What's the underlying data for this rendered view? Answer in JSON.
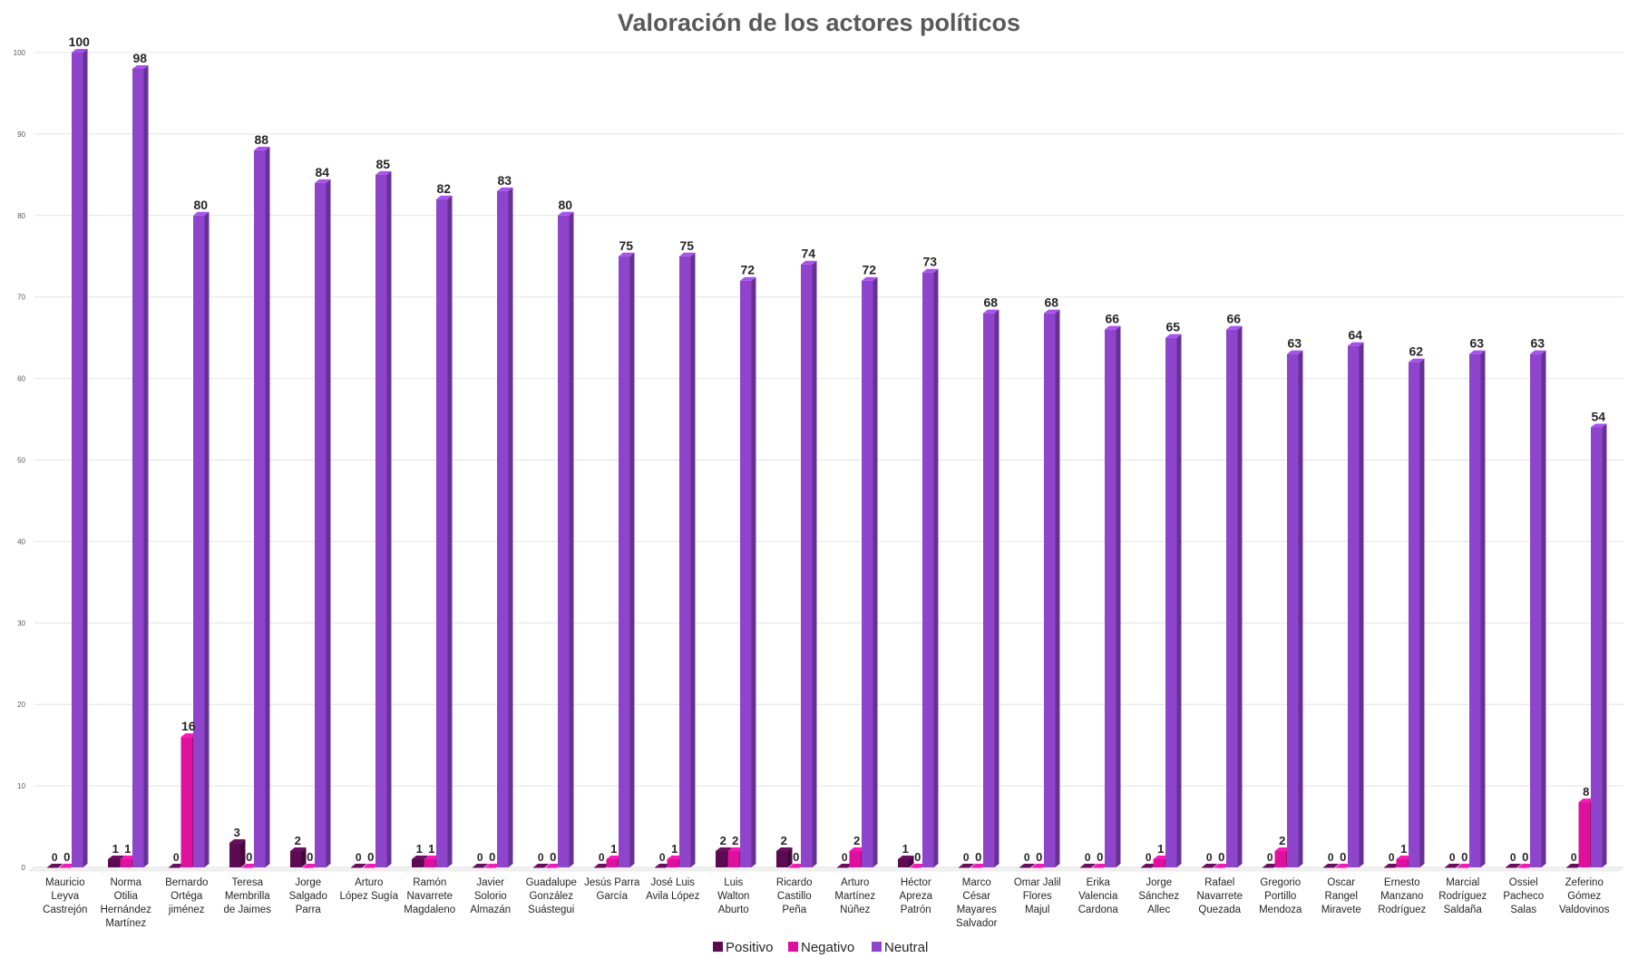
{
  "chart_data": {
    "type": "bar",
    "title": "Valoración  de los actores políticos",
    "xlabel": "",
    "ylabel": "",
    "ylim": [
      0,
      100
    ],
    "yticks": [
      0,
      10,
      20,
      30,
      40,
      50,
      60,
      70,
      80,
      90,
      100
    ],
    "grid": true,
    "legend_position": "bottom",
    "categories": [
      [
        "Mauricio",
        "Leyva",
        "Castrejón"
      ],
      [
        "Norma",
        "Otilia",
        "Hernández",
        "Martínez"
      ],
      [
        "Bernardo",
        "Ortéga",
        "jiménez"
      ],
      [
        "Teresa",
        "Membrilla",
        "de Jaimes"
      ],
      [
        "Jorge",
        "Salgado",
        "Parra"
      ],
      [
        "Arturo",
        "López Sugía"
      ],
      [
        "Ramón",
        "Navarrete",
        "Magdaleno"
      ],
      [
        "Javier",
        "Solorio",
        "Almazán"
      ],
      [
        "Guadalupe",
        "González",
        "Suástegui"
      ],
      [
        "Jesús Parra",
        "García"
      ],
      [
        "José Luis",
        "Avila López"
      ],
      [
        "Luis",
        "Walton",
        "Aburto"
      ],
      [
        "Ricardo",
        "Castillo",
        "Peña"
      ],
      [
        "Arturo",
        "Martínez",
        "Núñez"
      ],
      [
        "Héctor",
        "Apreza",
        "Patrón"
      ],
      [
        "Marco",
        "César",
        "Mayares",
        "Salvador"
      ],
      [
        "Omar Jalil",
        "Flores",
        "Majul"
      ],
      [
        "Erika",
        "Valencia",
        "Cardona"
      ],
      [
        "Jorge",
        "Sánchez",
        "Allec"
      ],
      [
        "Rafael",
        "Navarrete",
        "Quezada"
      ],
      [
        "Gregorio",
        "Portillo",
        "Mendoza"
      ],
      [
        "Oscar",
        "Rangel",
        "Miravete"
      ],
      [
        "Ernesto",
        "Manzano",
        "Rodríguez"
      ],
      [
        "Marcial",
        "Rodríguez",
        "Saldaña"
      ],
      [
        "Ossiel",
        "Pacheco",
        "Salas"
      ],
      [
        "Zeferino",
        "Gómez",
        "Valdovinos"
      ]
    ],
    "series": [
      {
        "name": "Positivo",
        "color": "#5c0a52",
        "values": [
          0,
          1,
          0,
          3,
          2,
          0,
          1,
          0,
          0,
          0,
          0,
          2,
          2,
          0,
          1,
          0,
          0,
          0,
          0,
          0,
          0,
          0,
          0,
          0,
          0,
          0
        ]
      },
      {
        "name": "Negativo",
        "color": "#e0109e",
        "values": [
          0,
          1,
          16,
          0,
          0,
          0,
          1,
          0,
          0,
          1,
          1,
          2,
          0,
          2,
          0,
          0,
          0,
          0,
          1,
          0,
          2,
          0,
          1,
          0,
          0,
          8
        ]
      },
      {
        "name": "Neutral",
        "color": "#8f44cc",
        "values": [
          100,
          98,
          80,
          88,
          84,
          85,
          82,
          83,
          80,
          75,
          75,
          72,
          74,
          72,
          73,
          68,
          68,
          66,
          65,
          66,
          63,
          64,
          62,
          63,
          63,
          54
        ]
      }
    ]
  }
}
